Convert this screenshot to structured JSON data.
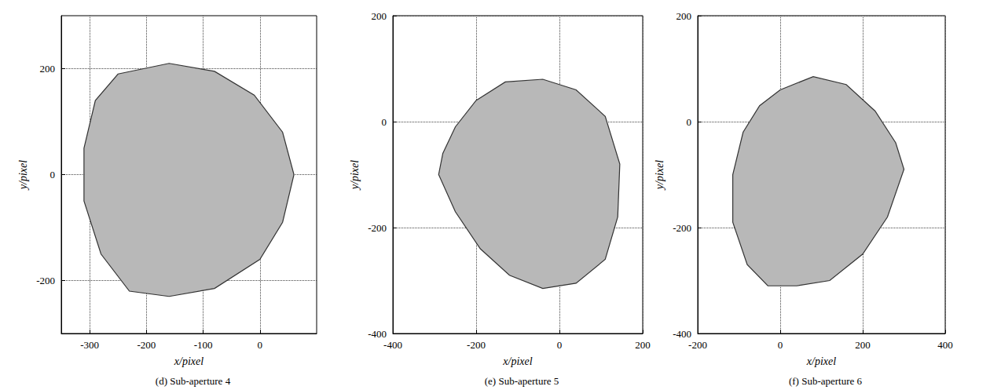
{
  "chart_data": [
    {
      "type": "polygon",
      "title": "(d) Sub-aperture 4",
      "xlabel": "x/pixel",
      "ylabel": "y/pixel",
      "xlim": [
        -350,
        100
      ],
      "xticks": [
        -300,
        -200,
        -100,
        0
      ],
      "ylim": [
        -300,
        300
      ],
      "yticks": [
        -200,
        0,
        200
      ],
      "grid": true,
      "color": "#b8b8b8",
      "x": [
        -250,
        -160,
        -80,
        -10,
        40,
        60,
        40,
        0,
        -80,
        -160,
        -230,
        -280,
        -310,
        -310,
        -290
      ],
      "values": [
        190,
        210,
        195,
        150,
        80,
        0,
        -90,
        -160,
        -215,
        -230,
        -220,
        -150,
        -50,
        50,
        140
      ]
    },
    {
      "type": "polygon",
      "title": "(e) Sub-aperture 5",
      "xlabel": "x/pixel",
      "ylabel": "y/pixel",
      "xlim": [
        -400,
        200
      ],
      "xticks": [
        -400,
        -200,
        0,
        200
      ],
      "ylim": [
        -400,
        200
      ],
      "yticks": [
        -400,
        -200,
        0,
        200
      ],
      "grid": true,
      "color": "#b8b8b8",
      "x": [
        -200,
        -130,
        -40,
        40,
        110,
        145,
        140,
        110,
        40,
        -40,
        -120,
        -190,
        -250,
        -290,
        -280,
        -250
      ],
      "values": [
        40,
        75,
        80,
        60,
        10,
        -80,
        -180,
        -260,
        -305,
        -315,
        -290,
        -240,
        -170,
        -100,
        -60,
        -10
      ]
    },
    {
      "type": "polygon",
      "title": "(f) Sub-aperture 6",
      "xlabel": "x/pixel",
      "ylabel": "y/pixel",
      "xlim": [
        -200,
        400
      ],
      "xticks": [
        -200,
        0,
        200,
        400
      ],
      "ylim": [
        -400,
        200
      ],
      "yticks": [
        -400,
        -200,
        0,
        200
      ],
      "grid": true,
      "color": "#b8b8b8",
      "x": [
        0,
        80,
        160,
        230,
        280,
        300,
        260,
        200,
        120,
        40,
        -30,
        -80,
        -115,
        -115,
        -90,
        -50
      ],
      "values": [
        60,
        85,
        70,
        20,
        -40,
        -90,
        -180,
        -250,
        -300,
        -310,
        -310,
        -270,
        -190,
        -100,
        -20,
        30
      ]
    }
  ]
}
